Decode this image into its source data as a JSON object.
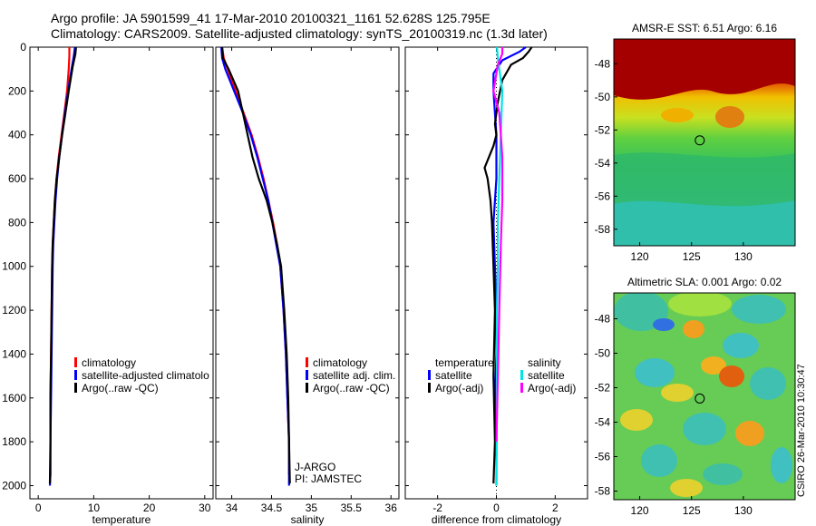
{
  "header": {
    "title_line1": "Argo profile: JA 5901599_41 17-Mar-2010 20100321_1161 52.628S 125.795E",
    "title_line2": "Climatology: CARS2009. Satellite-adjusted climatology: synTS_20100319.nc (1.3d later)"
  },
  "footer": {
    "credit": "CSIRO 26-Mar-2010 10:30:47"
  },
  "colors": {
    "climatology": "#ff0000",
    "satellite": "#0000ff",
    "argo": "#000000",
    "sat_salinity": "#00e5e5",
    "argo_salinity": "#ff00ff"
  },
  "chart_data": [
    {
      "type": "line",
      "id": "temperature",
      "xlabel": "temperature",
      "xlim": [
        -1.5,
        31.5
      ],
      "xticks": [
        0,
        10,
        20,
        30
      ],
      "ylim": [
        0,
        2060
      ],
      "yticks": [
        0,
        200,
        400,
        600,
        800,
        1000,
        1200,
        1400,
        1600,
        1800,
        2000
      ],
      "series": [
        {
          "name": "climatology",
          "color": "#ff0000",
          "x": [
            5.6,
            5.6,
            5.5,
            5.2,
            4.7,
            4.2,
            3.7,
            3.3,
            3.0,
            2.8,
            2.6,
            2.5,
            2.4,
            2.3,
            2.2,
            2.2,
            2.2,
            2.1
          ],
          "y": [
            0,
            40,
            100,
            200,
            300,
            400,
            500,
            600,
            700,
            800,
            900,
            1000,
            1200,
            1400,
            1600,
            1800,
            1950,
            1990
          ]
        },
        {
          "name": "satellite-adjusted climatology",
          "color": "#0000ff",
          "x": [
            6.6,
            6.4,
            6.0,
            5.4,
            4.8,
            4.3,
            3.8,
            3.4,
            3.1,
            2.9,
            2.7,
            2.6,
            2.5,
            2.4,
            2.3,
            2.2,
            2.2,
            2.1
          ],
          "y": [
            0,
            40,
            100,
            200,
            300,
            400,
            500,
            600,
            700,
            800,
            900,
            1000,
            1200,
            1400,
            1600,
            1800,
            1950,
            2000
          ]
        },
        {
          "name": "Argo(..raw -QC)",
          "color": "#000000",
          "x": [
            6.8,
            6.7,
            6.2,
            5.5,
            4.9,
            4.3,
            3.8,
            3.3,
            3.0,
            2.8,
            2.6,
            2.5,
            2.4,
            2.3,
            2.2,
            2.2,
            2.1
          ],
          "y": [
            0,
            30,
            90,
            200,
            300,
            400,
            500,
            600,
            700,
            800,
            900,
            1000,
            1200,
            1400,
            1600,
            1800,
            1990
          ]
        }
      ],
      "legend": [
        "climatology",
        "satellite-adjusted climatolo",
        "Argo(..raw -QC)"
      ]
    },
    {
      "type": "line",
      "id": "salinity",
      "xlabel": "salinity",
      "xlim": [
        33.8,
        36.1
      ],
      "xticks": [
        34,
        34.5,
        35,
        35.5,
        36
      ],
      "ylim": [
        0,
        2060
      ],
      "series": [
        {
          "name": "climatology",
          "color": "#ff0000",
          "x": [
            33.88,
            33.9,
            33.95,
            34.05,
            34.15,
            34.25,
            34.33,
            34.4,
            34.46,
            34.52,
            34.57,
            34.61,
            34.65,
            34.68,
            34.7,
            34.72,
            34.72
          ],
          "y": [
            0,
            50,
            100,
            200,
            300,
            400,
            500,
            600,
            700,
            800,
            900,
            1000,
            1200,
            1400,
            1600,
            1800,
            1950
          ]
        },
        {
          "name": "satellite adj. clim.",
          "color": "#0000ff",
          "x": [
            33.87,
            33.88,
            33.92,
            34.03,
            34.14,
            34.24,
            34.32,
            34.39,
            34.46,
            34.51,
            34.56,
            34.61,
            34.65,
            34.68,
            34.7,
            34.72,
            34.72
          ],
          "y": [
            0,
            50,
            100,
            200,
            300,
            400,
            500,
            600,
            700,
            800,
            900,
            1000,
            1200,
            1400,
            1600,
            1800,
            2000
          ]
        },
        {
          "name": "Argo(..raw -QC)",
          "color": "#000000",
          "x": [
            33.88,
            33.89,
            33.96,
            34.08,
            34.14,
            34.2,
            34.26,
            34.34,
            34.44,
            34.51,
            34.57,
            34.62,
            34.66,
            34.69,
            34.71,
            34.72,
            34.73
          ],
          "y": [
            0,
            50,
            100,
            200,
            300,
            400,
            500,
            600,
            700,
            800,
            900,
            1000,
            1200,
            1400,
            1600,
            1800,
            1990
          ]
        }
      ],
      "legend": [
        "climatology",
        "satellite adj. clim.",
        "Argo(..raw -QC)"
      ],
      "annotations": [
        "J-ARGO",
        "PI: JAMSTEC"
      ]
    },
    {
      "type": "line",
      "id": "difference",
      "xlabel": "difference from climatology",
      "xlim": [
        -3.1,
        3.1
      ],
      "xticks": [
        -2,
        0,
        2
      ],
      "ylim": [
        0,
        2060
      ],
      "series": [
        {
          "name": "temperature satellite",
          "color": "#0000ff",
          "x": [
            1.0,
            0.8,
            0.2,
            -0.1,
            -0.1,
            -0.05,
            0.0,
            0.0,
            0.0,
            -0.1,
            -0.05,
            0.0,
            0.0,
            -0.05,
            0.0,
            0.0
          ],
          "y": [
            0,
            20,
            60,
            120,
            200,
            300,
            400,
            500,
            600,
            800,
            1000,
            1200,
            1400,
            1600,
            1800,
            2000
          ]
        },
        {
          "name": "temperature Argo(-adj)",
          "color": "#000000",
          "x": [
            1.2,
            1.1,
            0.9,
            0.5,
            0.2,
            0.05,
            -0.05,
            0.0,
            -0.1,
            -0.4,
            -0.3,
            -0.2,
            -0.15,
            -0.1,
            -0.05,
            -0.1,
            -0.05,
            -0.1
          ],
          "y": [
            0,
            20,
            50,
            80,
            150,
            250,
            350,
            400,
            450,
            550,
            600,
            700,
            800,
            1000,
            1200,
            1500,
            1800,
            1990
          ]
        },
        {
          "name": "salinity satellite",
          "color": "#00e5e5",
          "x": [
            0.02,
            0.05,
            0.1,
            0.2,
            0.15,
            0.1,
            0.05,
            0.05,
            0.02,
            0.02,
            0.0
          ],
          "y": [
            0,
            50,
            100,
            200,
            400,
            600,
            800,
            1000,
            1200,
            1600,
            2000
          ]
        },
        {
          "name": "salinity Argo(-adj)",
          "color": "#ff00ff",
          "x": [
            0.2,
            0.2,
            0.05,
            -0.1,
            0.1,
            0.15,
            0.2,
            0.2,
            0.15,
            0.1,
            0.05,
            0.0
          ],
          "y": [
            0,
            30,
            80,
            200,
            300,
            400,
            500,
            700,
            900,
            1200,
            1500,
            1800
          ]
        }
      ],
      "legend_titles": [
        "temperature",
        "salinity"
      ],
      "legend": [
        "satellite",
        "Argo(-adj)",
        "satellite",
        "Argo(-adj)"
      ]
    },
    {
      "type": "heatmap",
      "id": "sst_map",
      "title": "AMSR-E SST: 6.51 Argo: 6.16",
      "xlim": [
        117.5,
        135
      ],
      "ylim": [
        -59,
        -46.5
      ],
      "xticks": [
        120,
        125,
        130
      ],
      "yticks": [
        -48,
        -50,
        -52,
        -54,
        -56,
        -58
      ],
      "marker": {
        "lon": 125.795,
        "lat": -52.628
      }
    },
    {
      "type": "heatmap",
      "id": "sla_map",
      "title": "Altimetric SLA: 0.001 Argo: 0.02",
      "xlim": [
        117.5,
        135
      ],
      "ylim": [
        -58.5,
        -46.5
      ],
      "xticks": [
        120,
        125,
        130
      ],
      "yticks": [
        -48,
        -50,
        -52,
        -54,
        -56,
        -58
      ],
      "marker": {
        "lon": 125.795,
        "lat": -52.628
      }
    }
  ]
}
